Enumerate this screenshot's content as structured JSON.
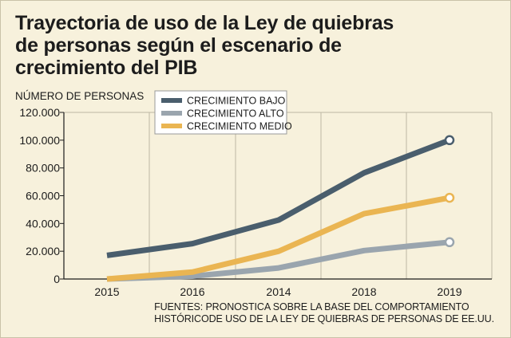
{
  "title_lines": [
    "Trayectoria de uso de la Ley de quiebras",
    "de personas según el escenario de",
    "crecimiento del PIB"
  ],
  "source_lines": [
    "FUENTES: PRONOSTICA SOBRE LA BASE DEL COMPORTAMIENTO",
    "HISTÓRICODE USO DE LA LEY DE QUIEBRAS DE PERSONAS DE EE.UU."
  ],
  "colors": {
    "background": "#f7f1dc",
    "grid": "#bdb7a4",
    "axis": "#1c1c1c",
    "bajo": "#4a5e6d",
    "alto": "#9aa5ae",
    "medio": "#eab552"
  },
  "chart_data": {
    "type": "line",
    "title": "Trayectoria de uso de la Ley de quiebras de personas según el escenario de crecimiento del PIB",
    "ylabel": "NÚMERO DE PERSONAS",
    "xlabel": "",
    "categories": [
      "2015",
      "2016",
      "2014",
      "2018",
      "2019"
    ],
    "ylim": [
      0,
      120000
    ],
    "yticks": [
      0,
      20000,
      40000,
      60000,
      80000,
      100000,
      120000
    ],
    "ytick_labels": [
      "0",
      "20.000",
      "40.000",
      "60.000",
      "80.000",
      "100.000",
      "120.000"
    ],
    "grid": "vertical",
    "legend_position": "top-center",
    "series": [
      {
        "name": "CRECIMIENTO BAJO",
        "color_key": "bajo",
        "values": [
          17000,
          25500,
          42500,
          76500,
          100000
        ]
      },
      {
        "name": "CRECIMIENTO ALTO",
        "color_key": "alto",
        "values": [
          0,
          2000,
          8000,
          20500,
          26500
        ]
      },
      {
        "name": "CRECIMIENTO MEDIO",
        "color_key": "medio",
        "values": [
          0,
          5000,
          20000,
          47000,
          58500
        ]
      }
    ]
  }
}
